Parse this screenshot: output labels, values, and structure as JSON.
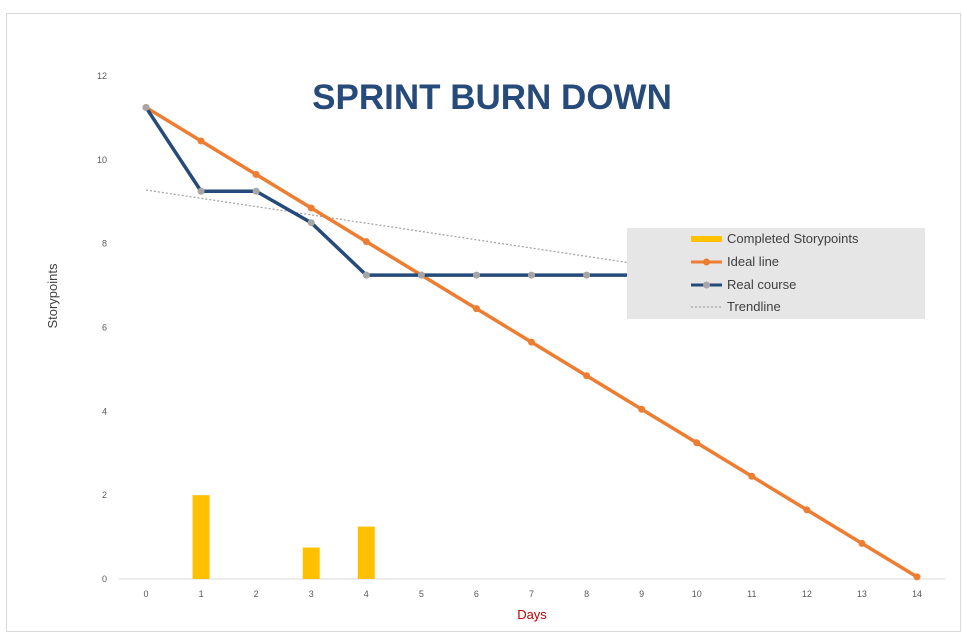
{
  "chart_data": {
    "type": "line",
    "title": "SPRINT BURN DOWN",
    "xlabel": "Days",
    "ylabel": "Storypoints",
    "x": [
      0,
      1,
      2,
      3,
      4,
      5,
      6,
      7,
      8,
      9,
      10,
      11,
      12,
      13,
      14
    ],
    "x_tick_labels": [
      "0",
      "1",
      "2",
      "3",
      "4",
      "5",
      "6",
      "7",
      "8",
      "9",
      "10",
      "11",
      "12",
      "13",
      "14"
    ],
    "y_tick_labels": [
      "0",
      "2",
      "4",
      "6",
      "8",
      "10",
      "12"
    ],
    "ylim": [
      0,
      12
    ],
    "xlim": [
      0,
      14
    ],
    "grid": false,
    "legend_position": "right",
    "series": [
      {
        "name": "Completed Storypoints",
        "type": "bar",
        "color": "#ffc000",
        "x": [
          1,
          3,
          4
        ],
        "values": [
          2.0,
          0.75,
          1.25
        ]
      },
      {
        "name": "Ideal line",
        "type": "line",
        "color": "#ed7d31",
        "x": [
          0,
          1,
          2,
          3,
          4,
          5,
          6,
          7,
          8,
          9,
          10,
          11,
          12,
          13,
          14
        ],
        "values": [
          11.25,
          10.45,
          9.65,
          8.85,
          8.05,
          7.25,
          6.45,
          5.65,
          4.85,
          4.05,
          3.25,
          2.45,
          1.65,
          0.85,
          0.05
        ]
      },
      {
        "name": "Real course",
        "type": "line",
        "color": "#264a79",
        "marker_color": "#a6a6a6",
        "x": [
          0,
          1,
          2,
          3,
          4,
          5,
          6,
          7,
          8,
          9
        ],
        "values": [
          11.25,
          9.25,
          9.25,
          8.5,
          7.25,
          7.25,
          7.25,
          7.25,
          7.25,
          7.25
        ]
      },
      {
        "name": "Trendline",
        "type": "trendline",
        "color": "#a6a6a6",
        "x": [
          0,
          9
        ],
        "values": [
          9.28,
          7.5
        ]
      }
    ],
    "colors": {
      "title": "#264a79",
      "xlabel": "#c00000",
      "legend_background": "#e7e6e6",
      "frame": "#d9d9d9",
      "axis": "#d9d9d9"
    }
  }
}
